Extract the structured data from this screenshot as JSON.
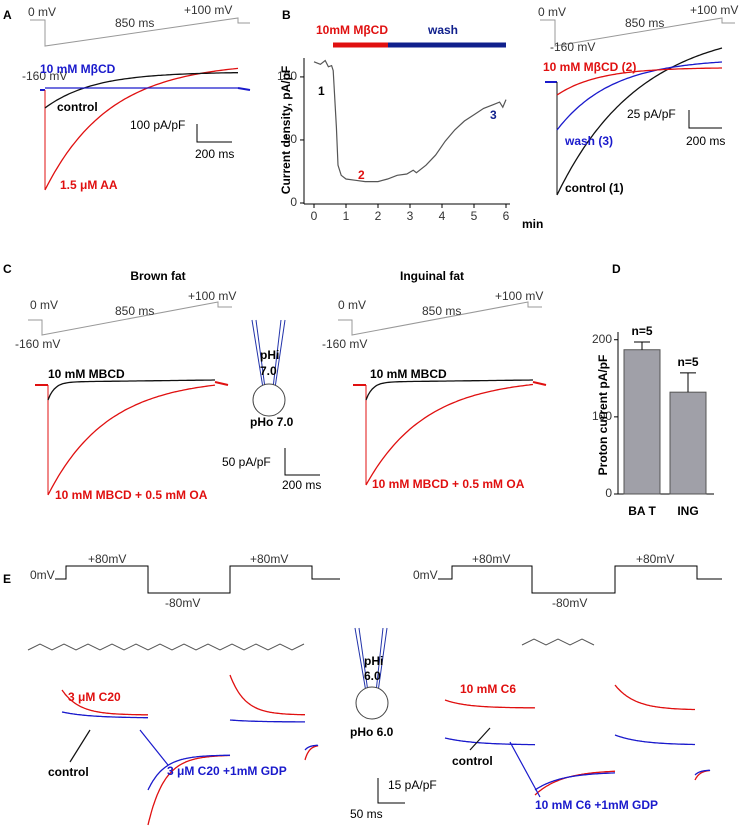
{
  "chart_data": [
    {
      "type": "line",
      "y_label": "Current density, pA/pF",
      "x_label": "min",
      "x": [
        0,
        0.2,
        0.35,
        0.45,
        0.55,
        0.6,
        0.7,
        0.75,
        0.85,
        1,
        1.3,
        1.6,
        2,
        2.3,
        2.6,
        2.9,
        3.1,
        3.2,
        3.5,
        3.8,
        4.1,
        4.4,
        4.7,
        5,
        5.3,
        5.6,
        5.8,
        5.9,
        6
      ],
      "series": [
        {
          "color": "#555555",
          "values": [
            112,
            110,
            113,
            108,
            109,
            105,
            60,
            30,
            22,
            19,
            18,
            17,
            17,
            19,
            22,
            23,
            26,
            24,
            30,
            38,
            49,
            58,
            65,
            70,
            75,
            78,
            80,
            76,
            82
          ]
        }
      ],
      "xlim": [
        0,
        6
      ],
      "xticks": [
        0,
        1,
        2,
        3,
        4,
        5,
        6
      ],
      "ylim": [
        0,
        115
      ],
      "yticks": [
        0,
        50,
        100
      ],
      "annotations": [
        "10mM MβCD",
        "wash",
        "1",
        "2",
        "3"
      ]
    },
    {
      "type": "bar",
      "y_label": "Proton current pA/pF",
      "categories": [
        "BA T",
        "ING"
      ],
      "values": [
        187,
        132
      ],
      "errors": [
        10,
        25
      ],
      "color": "#a0a0a8",
      "ylim": [
        0,
        210
      ],
      "yticks": [
        0,
        100,
        200
      ],
      "annotations": [
        "n=5",
        "n=5"
      ]
    }
  ],
  "panel_letters": [
    "A",
    "B",
    "C",
    "D",
    "E"
  ],
  "texts": [
    "0 mV",
    "850 ms",
    "+100 mV",
    "-160 mV",
    "10 mM MβCD",
    "control",
    "100 pA/pF",
    "200 ms",
    "1.5 μM AA",
    "0 mV",
    "850 ms",
    "+100 mV",
    "-160 mV",
    "10 mM MβCD (2)",
    "25 pA/pF",
    "wash (3)",
    "200 ms",
    "control (1)",
    "Brown fat",
    "Inguinal fat",
    "0 mV",
    "850 ms",
    "+100 mV",
    "-160 mV",
    "10 mM MBCD",
    "10 mM MBCD + 0.5 mM OA",
    "pHi",
    "7.0",
    "pHo 7.0",
    "50 pA/pF",
    "200 ms",
    "0 mV",
    "850 ms",
    "+100 mV",
    "-160 mV",
    "10 mM MBCD",
    "10 mM MBCD + 0.5 mM OA",
    "0mV",
    "+80mV",
    "-80mV",
    "+80mV",
    "0mV",
    "+80mV",
    "-80mV",
    "+80mV",
    "3 μM C20",
    "control",
    "3 μM  C20 +1mM GDP",
    "pHi",
    "6.0",
    "pHo 6.0",
    "15 pA/pF",
    "50 ms",
    "10 mM C6",
    "control",
    "10 mM  C6 +1mM GDP"
  ]
}
